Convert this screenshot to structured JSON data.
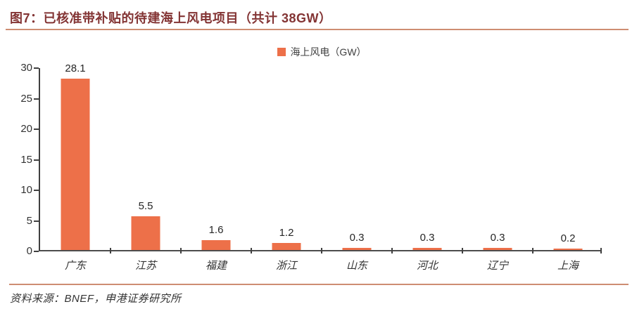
{
  "header": {
    "title": "图7：已核准带补贴的待建海上风电项目（共计 38GW）"
  },
  "legend": {
    "label": "海上风电（GW）"
  },
  "chart_data": {
    "type": "bar",
    "title": "已核准带补贴的待建海上风电项目（共计 38GW）",
    "series_name": "海上风电（GW）",
    "categories": [
      "广东",
      "江苏",
      "福建",
      "浙江",
      "山东",
      "河北",
      "辽宁",
      "上海"
    ],
    "values": [
      28.1,
      5.5,
      1.6,
      1.2,
      0.3,
      0.3,
      0.3,
      0.2
    ],
    "value_labels": [
      "28.1",
      "5.5",
      "1.6",
      "1.2",
      "0.3",
      "0.3",
      "0.3",
      "0.2"
    ],
    "xlabel": "",
    "ylabel": "",
    "ylim": [
      0,
      30
    ],
    "y_ticks": [
      0,
      5,
      10,
      15,
      20,
      25,
      30
    ],
    "grid": false,
    "legend_position": "top-center"
  },
  "footer": {
    "source": "资料来源：BNEF，申港证券研究所"
  },
  "colors": {
    "bar": "#ed7049",
    "title": "#833434",
    "divider": "#ce8d72",
    "axis": "#404040",
    "text": "#262626"
  }
}
